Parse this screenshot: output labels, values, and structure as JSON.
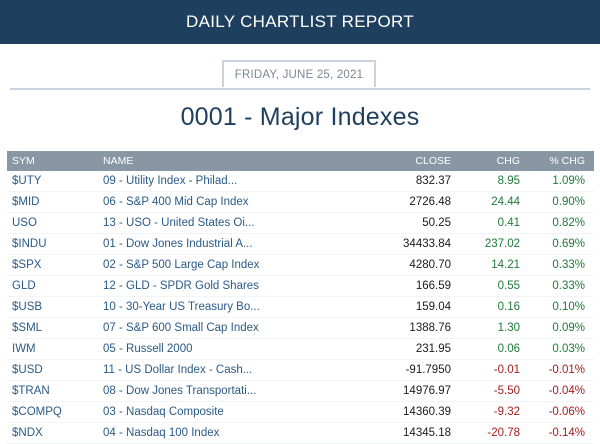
{
  "header": {
    "title": "DAILY CHARTLIST REPORT"
  },
  "date_label": "FRIDAY, JUNE 25, 2021",
  "page_title": "0001 - Major Indexes",
  "colors": {
    "header_bg": "#1f3f5e",
    "table_header_bg": "#8996a3",
    "positive": "#1f7a3a",
    "negative": "#a51d1d",
    "link": "#2a5a86"
  },
  "table": {
    "columns": [
      "SYM",
      "NAME",
      "CLOSE",
      "CHG",
      "% CHG"
    ],
    "rows": [
      {
        "sym": "$UTY",
        "name": "09 - Utility Index - Philad...",
        "close": "832.37",
        "chg": "8.95",
        "pct": "1.09%",
        "dir": "pos"
      },
      {
        "sym": "$MID",
        "name": "06 - S&P 400 Mid Cap Index",
        "close": "2726.48",
        "chg": "24.44",
        "pct": "0.90%",
        "dir": "pos"
      },
      {
        "sym": "USO",
        "name": "13 - USO - United States Oi...",
        "close": "50.25",
        "chg": "0.41",
        "pct": "0.82%",
        "dir": "pos"
      },
      {
        "sym": "$INDU",
        "name": "01 - Dow Jones Industrial A...",
        "close": "34433.84",
        "chg": "237.02",
        "pct": "0.69%",
        "dir": "pos"
      },
      {
        "sym": "$SPX",
        "name": "02 - S&P 500 Large Cap Index",
        "close": "4280.70",
        "chg": "14.21",
        "pct": "0.33%",
        "dir": "pos"
      },
      {
        "sym": "GLD",
        "name": "12 - GLD - SPDR Gold Shares",
        "close": "166.59",
        "chg": "0.55",
        "pct": "0.33%",
        "dir": "pos"
      },
      {
        "sym": "$USB",
        "name": "10 - 30-Year US Treasury Bo...",
        "close": "159.04",
        "chg": "0.16",
        "pct": "0.10%",
        "dir": "pos"
      },
      {
        "sym": "$SML",
        "name": "07 - S&P 600 Small Cap Index",
        "close": "1388.76",
        "chg": "1.30",
        "pct": "0.09%",
        "dir": "pos"
      },
      {
        "sym": "IWM",
        "name": "05 - Russell 2000",
        "close": "231.95",
        "chg": "0.06",
        "pct": "0.03%",
        "dir": "pos"
      },
      {
        "sym": "$USD",
        "name": "11 - US Dollar Index - Cash...",
        "close": "-91.7950",
        "chg": "-0.01",
        "pct": "-0.01%",
        "dir": "neg"
      },
      {
        "sym": "$TRAN",
        "name": "08 - Dow Jones Transportati...",
        "close": "14976.97",
        "chg": "-5.50",
        "pct": "-0.04%",
        "dir": "neg"
      },
      {
        "sym": "$COMPQ",
        "name": "03 - Nasdaq Composite",
        "close": "14360.39",
        "chg": "-9.32",
        "pct": "-0.06%",
        "dir": "neg"
      },
      {
        "sym": "$NDX",
        "name": "04 - Nasdaq 100 Index",
        "close": "14345.18",
        "chg": "-20.78",
        "pct": "-0.14%",
        "dir": "neg"
      }
    ]
  }
}
